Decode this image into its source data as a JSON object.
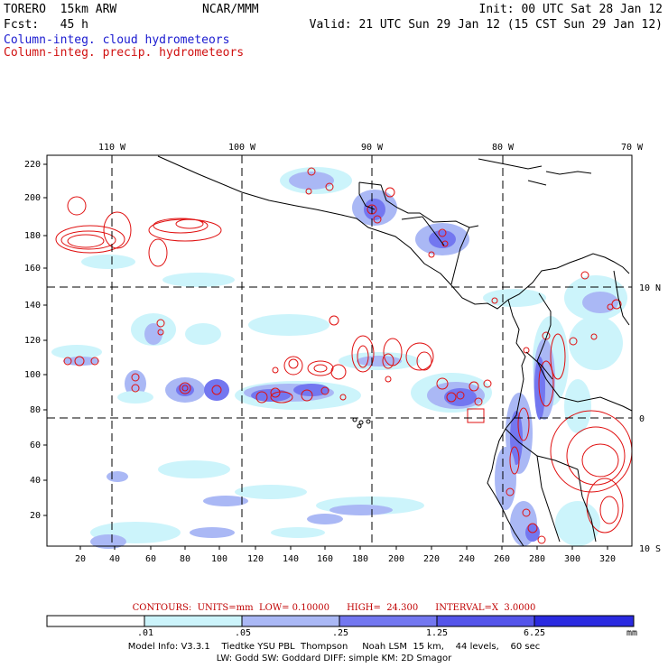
{
  "header": {
    "model": "TORERO  15km ARW",
    "center": "NCAR/MMM",
    "init": "Init: 00 UTC Sat 28 Jan 12",
    "fcst": "Fcst:   45 h",
    "valid": "Valid: 21 UTC Sun 29 Jan 12 (15 CST Sun 29 Jan 12)",
    "field1": "Column-integ. cloud hydrometeors",
    "field2": "Column-integ. precip. hydrometeors"
  },
  "map": {
    "lon_labels": [
      "110 W",
      "100 W",
      "90 W",
      "80 W",
      "70 W"
    ],
    "lat_labels": [
      "10 N",
      "0",
      "10 S"
    ],
    "y_ticks": [
      "220",
      "200",
      "180",
      "160",
      "140",
      "120",
      "100",
      "80",
      "60",
      "40",
      "20"
    ],
    "x_ticks": [
      "20",
      "40",
      "60",
      "80",
      "100",
      "120",
      "140",
      "160",
      "180",
      "200",
      "220",
      "240",
      "260",
      "280",
      "300",
      "320"
    ],
    "colors": {
      "coast": "#000000",
      "grid": "#000000",
      "precip_contour": "#e01010",
      "cloud_light": "#ccf4fb",
      "cloud_mid": "#aab8f5",
      "cloud_dark": "#7377f0",
      "cloud_darker": "#4b4be8"
    }
  },
  "contours": {
    "text": "CONTOURS:  UNITS=mm  LOW= 0.10000      HIGH=  24.300      INTERVAL=X  3.0000"
  },
  "legend": {
    "values": [
      ".01",
      ".05",
      ".25",
      "1.25",
      "6.25"
    ],
    "unit": "mm",
    "colors": [
      "#ffffff",
      "#ccf4fb",
      "#aab8f5",
      "#7377f0",
      "#5555ea",
      "#2a2ae0"
    ]
  },
  "model_info": {
    "line1": "Model Info: V3.3.1    Tiedtke YSU PBL  Thompson     Noah LSM  15 km,    44 levels,    60 sec",
    "line2": "LW: Godd SW: Goddard DIFF: simple KM: 2D Smagor"
  }
}
